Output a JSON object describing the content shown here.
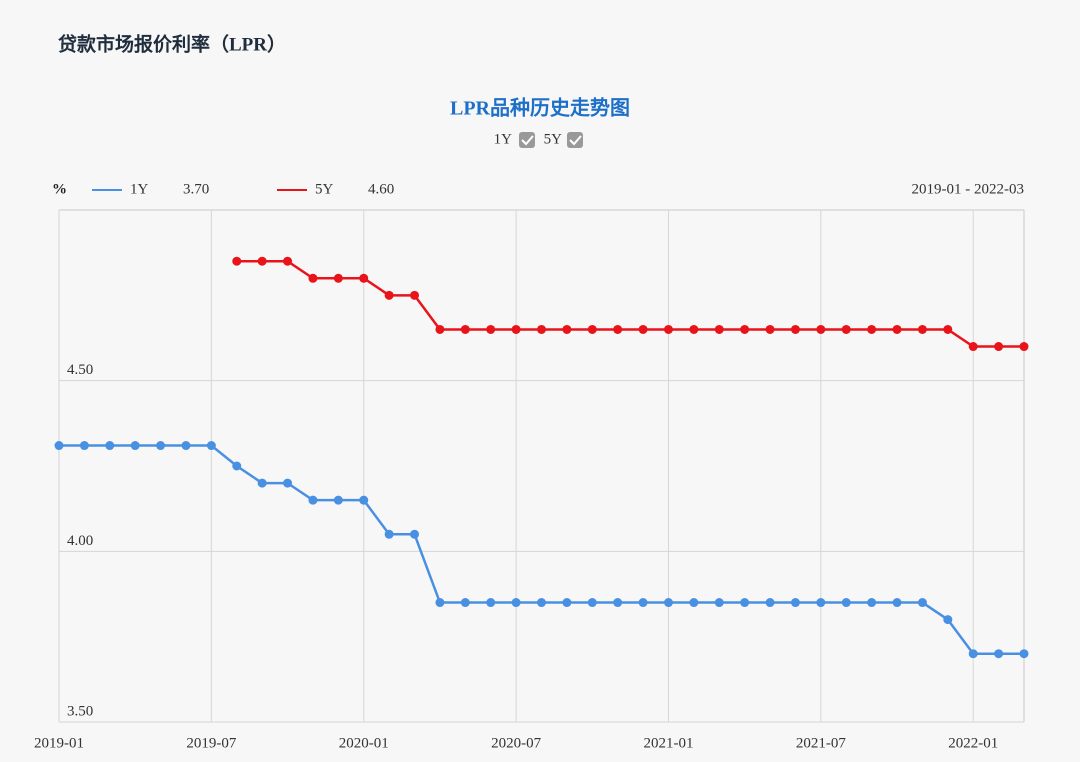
{
  "header": {
    "title": "贷款市场报价利率（LPR）"
  },
  "chart_data": {
    "type": "line",
    "title": "LPR品种历史走势图",
    "unit": "%",
    "range": "2019-01 - 2022-03",
    "categories": [
      "2019-01",
      null,
      null,
      null,
      null,
      null,
      "2019-07",
      null,
      null,
      null,
      null,
      null,
      "2020-01",
      null,
      null,
      null,
      null,
      null,
      "2020-07",
      null,
      null,
      null,
      null,
      null,
      "2021-01",
      null,
      null,
      null,
      null,
      null,
      "2021-07",
      null,
      null,
      null,
      null,
      null,
      "2022-01",
      null,
      null
    ],
    "series": [
      {
        "name": "1Y",
        "color": "#4a90e2",
        "last_label": "3.70",
        "values": [
          4.31,
          4.31,
          4.31,
          4.31,
          4.31,
          4.31,
          4.31,
          4.25,
          4.2,
          4.2,
          4.15,
          4.15,
          4.15,
          4.05,
          4.05,
          3.85,
          3.85,
          3.85,
          3.85,
          3.85,
          3.85,
          3.85,
          3.85,
          3.85,
          3.85,
          3.85,
          3.85,
          3.85,
          3.85,
          3.85,
          3.85,
          3.85,
          3.85,
          3.85,
          3.85,
          3.8,
          3.7,
          3.7,
          3.7
        ]
      },
      {
        "name": "5Y",
        "color": "#e8141a",
        "last_label": "4.60",
        "values": [
          null,
          null,
          null,
          null,
          null,
          null,
          null,
          4.85,
          4.85,
          4.85,
          4.8,
          4.8,
          4.8,
          4.75,
          4.75,
          4.65,
          4.65,
          4.65,
          4.65,
          4.65,
          4.65,
          4.65,
          4.65,
          4.65,
          4.65,
          4.65,
          4.65,
          4.65,
          4.65,
          4.65,
          4.65,
          4.65,
          4.65,
          4.65,
          4.65,
          4.65,
          4.6,
          4.6,
          4.6
        ]
      }
    ],
    "ylim": [
      3.5,
      5.0
    ],
    "yticks": [
      {
        "value": 3.5,
        "label": "3.50"
      },
      {
        "value": 4.0,
        "label": "4.00"
      },
      {
        "value": 4.5,
        "label": "4.50"
      }
    ],
    "grid": true
  }
}
